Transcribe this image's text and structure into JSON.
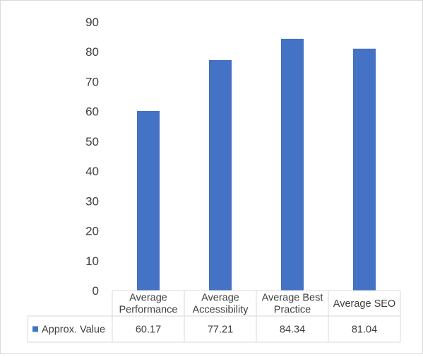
{
  "chart_data": {
    "type": "bar",
    "categories": [
      [
        "Average",
        "Performance"
      ],
      [
        "Average",
        "Accessibility"
      ],
      [
        "Average Best",
        "Practice"
      ],
      [
        "Average SEO"
      ]
    ],
    "series": [
      {
        "name": "Approx. Value",
        "values": [
          60.17,
          77.21,
          84.34,
          81.04
        ],
        "value_labels": [
          "60.17",
          "77.21",
          "84.34",
          "81.04"
        ],
        "color": "#4472c4"
      }
    ],
    "ylim": [
      0,
      90
    ],
    "yticks": [
      0,
      10,
      20,
      30,
      40,
      50,
      60,
      70,
      80,
      90
    ],
    "grid": false,
    "data_table": true,
    "legend_placement": "data-table-left"
  }
}
